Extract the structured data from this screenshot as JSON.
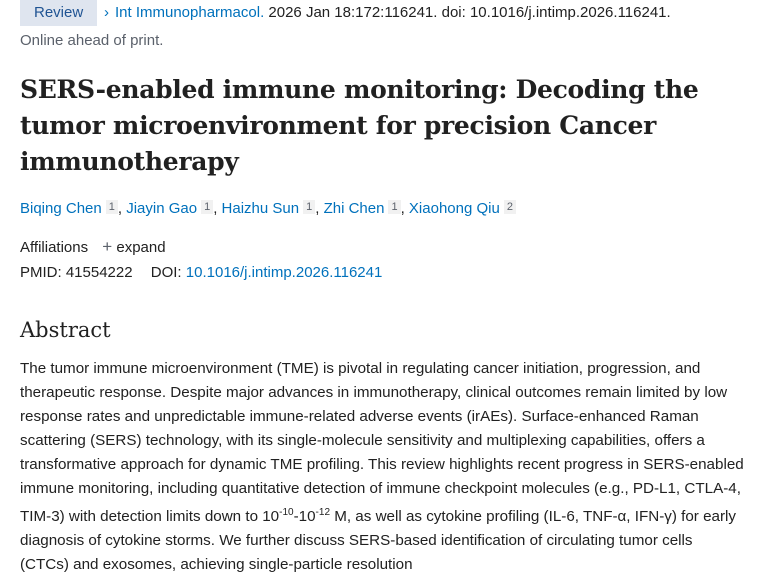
{
  "header": {
    "badge": "Review",
    "journal": "Int Immunopharmacol.",
    "citation": " 2026 Jan 18:172:116241. doi: 10.1016/j.intimp.2026.116241.",
    "status": "Online ahead of print."
  },
  "title": "SERS-enabled immune monitoring: Decoding the tumor microenvironment for precision Cancer immunotherapy",
  "authors": [
    {
      "name": "Biqing Chen",
      "aff": "1"
    },
    {
      "name": "Jiayin Gao",
      "aff": "1"
    },
    {
      "name": "Haizhu Sun",
      "aff": "1"
    },
    {
      "name": "Zhi Chen",
      "aff": "1"
    },
    {
      "name": "Xiaohong Qiu",
      "aff": "2"
    }
  ],
  "affiliations": {
    "label": "Affiliations",
    "expand": "expand"
  },
  "ids": {
    "pmid_label": "PMID: ",
    "pmid": "41554222",
    "doi_label": "DOI: ",
    "doi": "10.1016/j.intimp.2026.116241"
  },
  "abstract": {
    "heading": "Abstract",
    "text1": "The tumor immune microenvironment (TME) is pivotal in regulating cancer initiation, progression, and therapeutic response. Despite major advances in immunotherapy, clinical outcomes remain limited by low response rates and unpredictable immune-related adverse events (irAEs). Surface-enhanced Raman scattering (SERS) technology, with its single-molecule sensitivity and multiplexing capabilities, offers a transformative approach for dynamic TME profiling. This review highlights recent progress in SERS-enabled immune monitoring, including quantitative detection of immune checkpoint molecules (e.g., PD-L1, CTLA-4, TIM-3) with detection limits down to 10",
    "exp1": "-10",
    "mid": "-10",
    "exp2": "-12",
    "text2": " M, as well as cytokine profiling (IL-6, TNF-α, IFN-γ) for early diagnosis of cytokine storms. We further discuss SERS-based identification of circulating tumor cells (CTCs) and exosomes, achieving single-particle resolution"
  },
  "colors": {
    "link": "#0071bc",
    "badge_bg": "#dfe5ef",
    "badge_text": "#205493"
  }
}
